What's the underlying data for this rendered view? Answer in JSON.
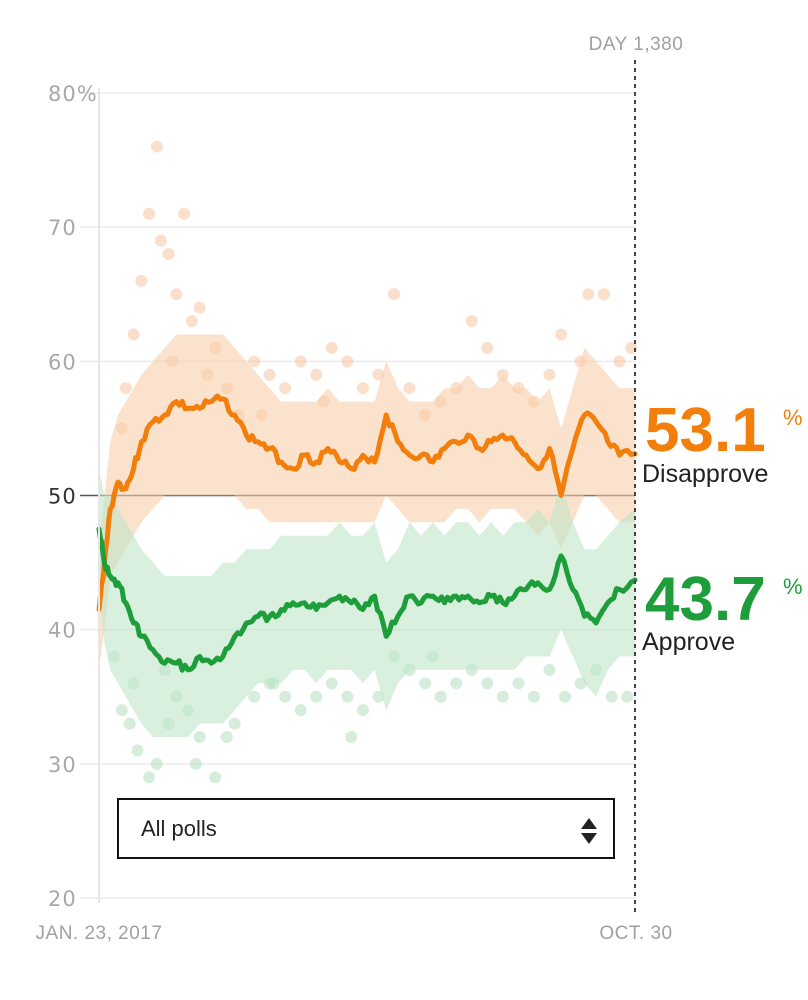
{
  "chart_data": {
    "type": "line",
    "x_start": "JAN. 23, 2017",
    "x_end": "OCT. 30",
    "day_marker": "DAY 1,380",
    "xlim": [
      1,
      1380
    ],
    "ylim": [
      20,
      80
    ],
    "y_ticks": [
      "20",
      "30",
      "40",
      "50",
      "60",
      "70",
      "80%"
    ],
    "grid": true,
    "series": [
      {
        "name": "Disapprove",
        "color": "#f27f0c",
        "final_value": "53.1",
        "unit": "%",
        "x": [
          1,
          15,
          30,
          50,
          70,
          90,
          110,
          140,
          170,
          200,
          230,
          260,
          290,
          320,
          350,
          380,
          410,
          440,
          470,
          500,
          530,
          560,
          590,
          620,
          650,
          680,
          710,
          740,
          770,
          800,
          830,
          860,
          890,
          920,
          950,
          980,
          1010,
          1040,
          1070,
          1100,
          1130,
          1160,
          1190,
          1220,
          1250,
          1280,
          1310,
          1340,
          1380
        ],
        "values": [
          41.5,
          45.0,
          49.0,
          51.0,
          50.5,
          52.0,
          54.0,
          55.5,
          56.0,
          57.0,
          56.5,
          56.5,
          57.0,
          57.2,
          56.0,
          54.5,
          54.0,
          53.5,
          52.5,
          52.0,
          53.0,
          52.5,
          53.5,
          52.5,
          52.0,
          53.0,
          52.5,
          56.0,
          54.0,
          53.0,
          53.0,
          52.5,
          53.5,
          54.0,
          54.5,
          53.5,
          54.0,
          54.5,
          54.0,
          53.0,
          52.0,
          53.5,
          50.0,
          53.5,
          56.0,
          55.5,
          54.0,
          53.0,
          53.1
        ],
        "band_low": [
          37,
          40,
          44,
          45,
          46,
          47,
          48,
          49,
          50,
          50,
          50,
          50,
          50,
          50,
          50,
          49,
          49,
          48,
          48,
          48,
          48,
          48,
          48,
          48,
          48,
          48,
          48,
          50,
          49,
          48,
          48,
          48,
          48,
          49,
          49,
          48,
          49,
          49,
          49,
          48,
          47,
          48,
          46,
          48,
          50,
          50,
          49,
          48,
          48
        ],
        "band_high": [
          46,
          50,
          54,
          56,
          57,
          58,
          59,
          60,
          61,
          62,
          62,
          62,
          62,
          62,
          61,
          60,
          59,
          58,
          57,
          57,
          57,
          57,
          58,
          57,
          57,
          57,
          57,
          60,
          58,
          57,
          57,
          57,
          58,
          58,
          59,
          58,
          58,
          59,
          58,
          58,
          57,
          58,
          55,
          58,
          61,
          60,
          59,
          58,
          58
        ]
      },
      {
        "name": "Approve",
        "color": "#1e9e3a",
        "final_value": "43.7",
        "unit": "%",
        "x": [
          1,
          15,
          30,
          50,
          70,
          90,
          110,
          140,
          170,
          200,
          230,
          260,
          290,
          320,
          350,
          380,
          410,
          440,
          470,
          500,
          530,
          560,
          590,
          620,
          650,
          680,
          710,
          740,
          770,
          800,
          830,
          860,
          890,
          920,
          950,
          980,
          1010,
          1040,
          1070,
          1100,
          1130,
          1160,
          1190,
          1220,
          1250,
          1280,
          1310,
          1340,
          1380
        ],
        "values": [
          47.5,
          45.0,
          44.0,
          43.5,
          42.0,
          40.5,
          39.5,
          38.5,
          37.5,
          37.5,
          37.0,
          38.0,
          37.5,
          38.0,
          39.5,
          40.5,
          41.0,
          41.0,
          41.5,
          42.0,
          42.0,
          41.5,
          42.0,
          42.5,
          42.0,
          41.5,
          42.5,
          39.5,
          41.0,
          42.5,
          42.0,
          42.5,
          42.0,
          42.5,
          42.5,
          42.0,
          42.5,
          42.0,
          42.5,
          43.0,
          43.5,
          43.0,
          45.5,
          43.0,
          41.0,
          40.5,
          42.0,
          43.0,
          43.7
        ],
        "band_low": [
          43,
          39,
          37,
          36,
          35,
          34,
          33,
          32,
          32,
          32,
          32,
          33,
          33,
          33,
          34,
          35,
          36,
          36,
          36,
          37,
          37,
          36,
          37,
          37,
          37,
          36,
          37,
          34,
          36,
          37,
          37,
          37,
          37,
          37,
          37,
          37,
          37,
          37,
          37,
          38,
          38,
          38,
          40,
          38,
          36,
          35,
          37,
          38,
          38
        ],
        "band_high": [
          52,
          50,
          50,
          49,
          48,
          47,
          46,
          45,
          44,
          44,
          44,
          44,
          44,
          45,
          45,
          46,
          46,
          46,
          47,
          47,
          47,
          47,
          47,
          48,
          47,
          47,
          48,
          45,
          46,
          48,
          47,
          48,
          47,
          48,
          48,
          47,
          48,
          47,
          48,
          48,
          49,
          48,
          51,
          48,
          46,
          46,
          47,
          48,
          49
        ]
      }
    ],
    "polls": {
      "disapprove": [
        [
          60,
          55
        ],
        [
          90,
          62
        ],
        [
          110,
          66
        ],
        [
          130,
          71
        ],
        [
          150,
          76
        ],
        [
          160,
          69
        ],
        [
          180,
          68
        ],
        [
          200,
          65
        ],
        [
          220,
          71
        ],
        [
          240,
          63
        ],
        [
          260,
          64
        ],
        [
          280,
          59
        ],
        [
          300,
          61
        ],
        [
          330,
          58
        ],
        [
          360,
          56
        ],
        [
          400,
          60
        ],
        [
          440,
          59
        ],
        [
          480,
          58
        ],
        [
          520,
          60
        ],
        [
          560,
          59
        ],
        [
          600,
          61
        ],
        [
          640,
          60
        ],
        [
          680,
          58
        ],
        [
          720,
          59
        ],
        [
          760,
          65
        ],
        [
          800,
          58
        ],
        [
          840,
          56
        ],
        [
          880,
          57
        ],
        [
          920,
          58
        ],
        [
          960,
          63
        ],
        [
          1000,
          61
        ],
        [
          1040,
          59
        ],
        [
          1080,
          58
        ],
        [
          1120,
          57
        ],
        [
          1160,
          59
        ],
        [
          1190,
          62
        ],
        [
          1240,
          60
        ],
        [
          1260,
          65
        ],
        [
          1300,
          65
        ],
        [
          1340,
          60
        ],
        [
          1370,
          61
        ],
        [
          70,
          58
        ],
        [
          190,
          60
        ],
        [
          420,
          56
        ],
        [
          580,
          57
        ]
      ],
      "approve": [
        [
          40,
          38
        ],
        [
          60,
          34
        ],
        [
          80,
          33
        ],
        [
          100,
          31
        ],
        [
          130,
          29
        ],
        [
          150,
          30
        ],
        [
          180,
          33
        ],
        [
          200,
          35
        ],
        [
          230,
          34
        ],
        [
          260,
          32
        ],
        [
          300,
          29
        ],
        [
          330,
          32
        ],
        [
          350,
          33
        ],
        [
          400,
          35
        ],
        [
          440,
          36
        ],
        [
          480,
          35
        ],
        [
          520,
          34
        ],
        [
          560,
          35
        ],
        [
          600,
          36
        ],
        [
          640,
          35
        ],
        [
          680,
          34
        ],
        [
          720,
          35
        ],
        [
          760,
          38
        ],
        [
          800,
          37
        ],
        [
          840,
          36
        ],
        [
          880,
          35
        ],
        [
          920,
          36
        ],
        [
          960,
          37
        ],
        [
          1000,
          36
        ],
        [
          1040,
          35
        ],
        [
          1080,
          36
        ],
        [
          1120,
          35
        ],
        [
          1160,
          37
        ],
        [
          1200,
          35
        ],
        [
          1240,
          36
        ],
        [
          1280,
          37
        ],
        [
          1320,
          35
        ],
        [
          1360,
          35
        ],
        [
          90,
          36
        ],
        [
          170,
          37
        ],
        [
          250,
          30
        ],
        [
          450,
          36
        ],
        [
          650,
          32
        ],
        [
          860,
          38
        ]
      ]
    }
  },
  "controls": {
    "poll_filter": {
      "label": "All polls"
    }
  }
}
